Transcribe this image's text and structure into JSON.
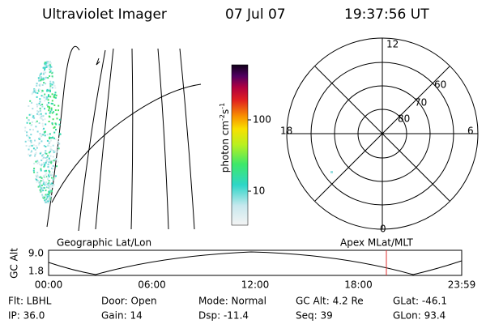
{
  "header": {
    "title": "Ultraviolet Imager",
    "date": "07 Jul 07",
    "time": "19:37:56 UT"
  },
  "colorbar": {
    "label": [
      "photon cm",
      "-2",
      "s",
      "-1"
    ],
    "ticks": [
      "100",
      "10"
    ]
  },
  "polar": {
    "mlt_labels": [
      "12",
      "18",
      "6",
      "0"
    ],
    "lat_labels": [
      "60",
      "70",
      "80"
    ]
  },
  "orbit": {
    "left_title": "Geographic Lat/Lon",
    "right_title": "Apex MLat/MLT",
    "y_label": "GC Alt",
    "yticks": [
      "9.0",
      "1.8"
    ],
    "xticks": [
      "00:00",
      "06:00",
      "12:00",
      "18:00",
      "23:59"
    ]
  },
  "info": [
    [
      "Flt: LBHL",
      "Door: Open",
      "Mode: Normal",
      "GC Alt: 4.2 Re",
      "GLat: -46.1"
    ],
    [
      "IP: 36.0",
      "Gain: 14",
      "Dsp: -11.4",
      "Seq: 39",
      "GLon: 93.4"
    ]
  ]
}
